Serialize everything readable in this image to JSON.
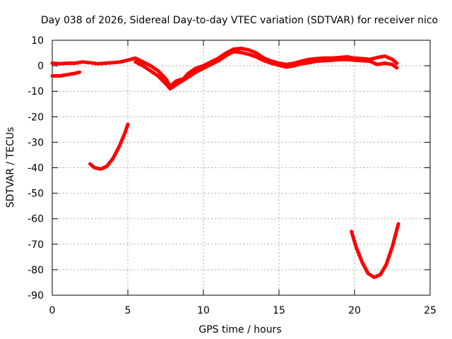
{
  "chart_data": {
    "type": "line",
    "title": "Day 038 of 2026, Sidereal Day-to-day VTEC variation (SDTVAR) for receiver nico",
    "xlabel": "GPS time / hours",
    "ylabel": "SDTVAR / TECUs",
    "xlim": [
      0,
      25
    ],
    "ylim": [
      -90,
      10
    ],
    "xticks": [
      0,
      5,
      10,
      15,
      20,
      25
    ],
    "yticks": [
      -90,
      -80,
      -70,
      -60,
      -50,
      -40,
      -30,
      -20,
      -10,
      0,
      10
    ],
    "grid": true,
    "color": "#ff0000",
    "series": [
      {
        "name": "trace-main-upper",
        "points": [
          [
            0,
            1
          ],
          [
            0.5,
            0.8
          ],
          [
            1,
            1
          ],
          [
            1.5,
            1
          ],
          [
            2,
            1.5
          ],
          [
            2.5,
            1.2
          ],
          [
            3,
            0.8
          ],
          [
            3.5,
            1
          ],
          [
            4,
            1.2
          ],
          [
            4.5,
            1.5
          ],
          [
            5,
            2.2
          ],
          [
            5.5,
            3
          ],
          [
            6,
            1.5
          ],
          [
            6.5,
            0
          ],
          [
            7,
            -2
          ],
          [
            7.5,
            -5
          ],
          [
            7.8,
            -8
          ],
          [
            8.2,
            -6
          ],
          [
            8.7,
            -5
          ],
          [
            9,
            -3
          ],
          [
            9.5,
            -1
          ],
          [
            10,
            0
          ],
          [
            10.5,
            1.5
          ],
          [
            11,
            3
          ],
          [
            11.5,
            5
          ],
          [
            12,
            6.5
          ],
          [
            12.5,
            6.8
          ],
          [
            13,
            6.2
          ],
          [
            13.5,
            5
          ],
          [
            14,
            3
          ],
          [
            14.5,
            1.8
          ],
          [
            15,
            1
          ],
          [
            15.5,
            0.5
          ],
          [
            16,
            1
          ],
          [
            16.5,
            1.8
          ],
          [
            17,
            2.5
          ],
          [
            17.5,
            2.8
          ],
          [
            18,
            3
          ],
          [
            18.5,
            3
          ],
          [
            19,
            3.2
          ],
          [
            19.5,
            3.5
          ],
          [
            20,
            3
          ],
          [
            20.5,
            2.8
          ],
          [
            21,
            2.5
          ],
          [
            21.5,
            3.2
          ],
          [
            22,
            3.8
          ],
          [
            22.5,
            2.5
          ],
          [
            22.8,
            1
          ]
        ]
      },
      {
        "name": "trace-main-lower",
        "points": [
          [
            5.5,
            1.5
          ],
          [
            6,
            0
          ],
          [
            6.5,
            -2
          ],
          [
            7,
            -4
          ],
          [
            7.5,
            -7
          ],
          [
            7.8,
            -9
          ],
          [
            8.3,
            -7
          ],
          [
            9,
            -4.5
          ],
          [
            9.5,
            -2.5
          ],
          [
            10,
            -1
          ],
          [
            10.5,
            0.5
          ],
          [
            11,
            2
          ],
          [
            11.5,
            4
          ],
          [
            12,
            5.5
          ],
          [
            12.5,
            5.2
          ],
          [
            13,
            4.5
          ],
          [
            13.5,
            3.5
          ],
          [
            14,
            2
          ],
          [
            14.5,
            1
          ],
          [
            15,
            0.2
          ],
          [
            15.5,
            -0.5
          ],
          [
            16,
            0
          ],
          [
            16.5,
            0.8
          ],
          [
            17,
            1.2
          ],
          [
            17.5,
            1.8
          ],
          [
            18,
            2
          ],
          [
            18.5,
            2.2
          ],
          [
            19,
            2.4
          ],
          [
            19.5,
            2.5
          ],
          [
            20,
            2.2
          ],
          [
            20.5,
            2
          ],
          [
            21,
            1.8
          ],
          [
            21.5,
            0.5
          ],
          [
            22,
            1
          ],
          [
            22.5,
            0.5
          ],
          [
            22.8,
            -0.8
          ]
        ]
      },
      {
        "name": "trace-early-offset",
        "points": [
          [
            0,
            -4
          ],
          [
            0.5,
            -4
          ],
          [
            1,
            -3.5
          ],
          [
            1.5,
            -3
          ],
          [
            1.8,
            -2.5
          ]
        ]
      },
      {
        "name": "trace-arc-dip",
        "points": [
          [
            2.5,
            -38.5
          ],
          [
            2.8,
            -40
          ],
          [
            3.2,
            -40.5
          ],
          [
            3.6,
            -39.5
          ],
          [
            4,
            -36.5
          ],
          [
            4.4,
            -32
          ],
          [
            4.8,
            -26.5
          ],
          [
            5,
            -23
          ]
        ]
      },
      {
        "name": "trace-arc-late",
        "points": [
          [
            19.8,
            -65
          ],
          [
            20.1,
            -71
          ],
          [
            20.5,
            -77
          ],
          [
            20.9,
            -81.5
          ],
          [
            21.3,
            -83
          ],
          [
            21.7,
            -82
          ],
          [
            22.1,
            -78
          ],
          [
            22.5,
            -71
          ],
          [
            22.9,
            -62
          ]
        ]
      }
    ]
  }
}
